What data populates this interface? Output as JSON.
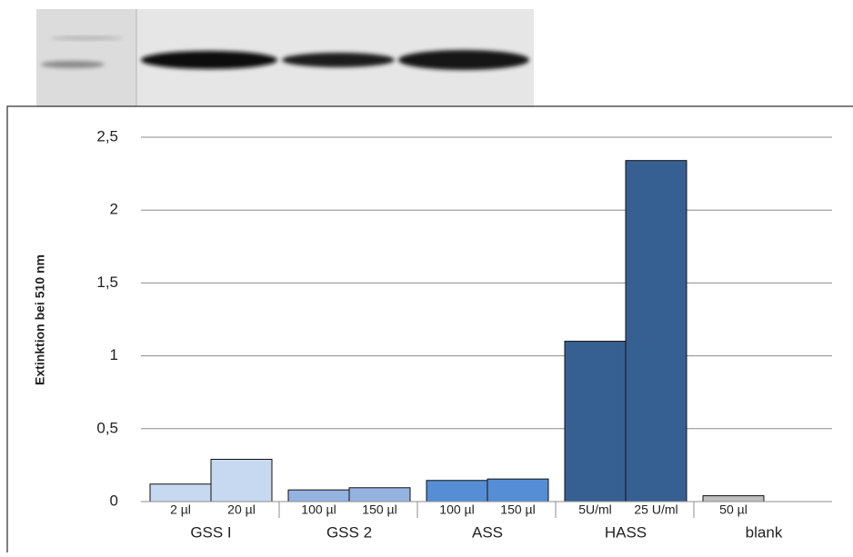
{
  "chart_data": {
    "type": "bar",
    "y_label": "Extinktion bei 510 nm",
    "groups": [
      {
        "name": "GSS I",
        "color": "#c6d9f1",
        "categories": [
          "2 µl",
          "20 µl"
        ],
        "values": [
          0.12,
          0.29
        ]
      },
      {
        "name": "GSS 2",
        "color": "#95b3e0",
        "categories": [
          "100 µl",
          "150 µl"
        ],
        "values": [
          0.08,
          0.095
        ]
      },
      {
        "name": "ASS",
        "color": "#558ed5",
        "categories": [
          "100 µl",
          "150 µl"
        ],
        "values": [
          0.145,
          0.155
        ]
      },
      {
        "name": "HASS",
        "color": "#366092",
        "categories": [
          "5U/ml",
          "25 U/ml"
        ],
        "values": [
          1.1,
          2.34
        ]
      },
      {
        "name": "blank",
        "color": "#bfbfbf",
        "categories": [
          "50 µl"
        ],
        "values": [
          0.04
        ]
      }
    ],
    "ylim": [
      0,
      2.5
    ],
    "yticks": [
      0,
      {
        "value": 0.5,
        "label": "0,5"
      },
      1,
      {
        "value": 1.5,
        "label": "1,5"
      },
      2,
      {
        "value": 2.5,
        "label": "2,5"
      }
    ],
    "grid": true
  }
}
